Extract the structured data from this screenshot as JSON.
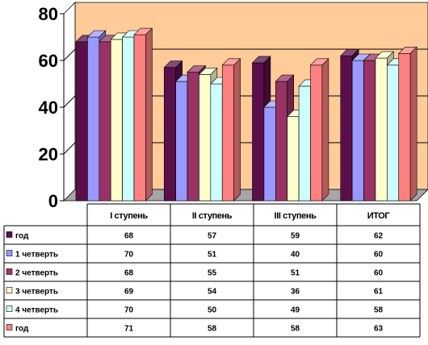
{
  "chart_data": {
    "type": "bar",
    "categories": [
      "I ступень",
      "II ступень",
      "III ступень",
      "ИТОГ"
    ],
    "series": [
      {
        "name": "год",
        "values": [
          68,
          57,
          59,
          62
        ],
        "color": "#5a0f4a"
      },
      {
        "name": "1 четверть",
        "values": [
          70,
          51,
          40,
          60
        ],
        "color": "#9999ff"
      },
      {
        "name": "2 четверть",
        "values": [
          68,
          55,
          51,
          60
        ],
        "color": "#993366"
      },
      {
        "name": "3 четверть",
        "values": [
          69,
          54,
          36,
          61
        ],
        "color": "#ffffcc"
      },
      {
        "name": "4 четверть",
        "values": [
          70,
          50,
          49,
          58
        ],
        "color": "#ccffff"
      },
      {
        "name": "год",
        "values": [
          71,
          58,
          58,
          63
        ],
        "color": "#ff8080"
      }
    ],
    "yticks": [
      "0",
      "20",
      "40",
      "60",
      "80"
    ],
    "ylim": [
      0,
      80
    ],
    "grid": true,
    "legend": "table-below",
    "colors": {
      "wall": "#ffcc99",
      "floor": "#a6a6a6",
      "gridline": "#000000"
    }
  }
}
